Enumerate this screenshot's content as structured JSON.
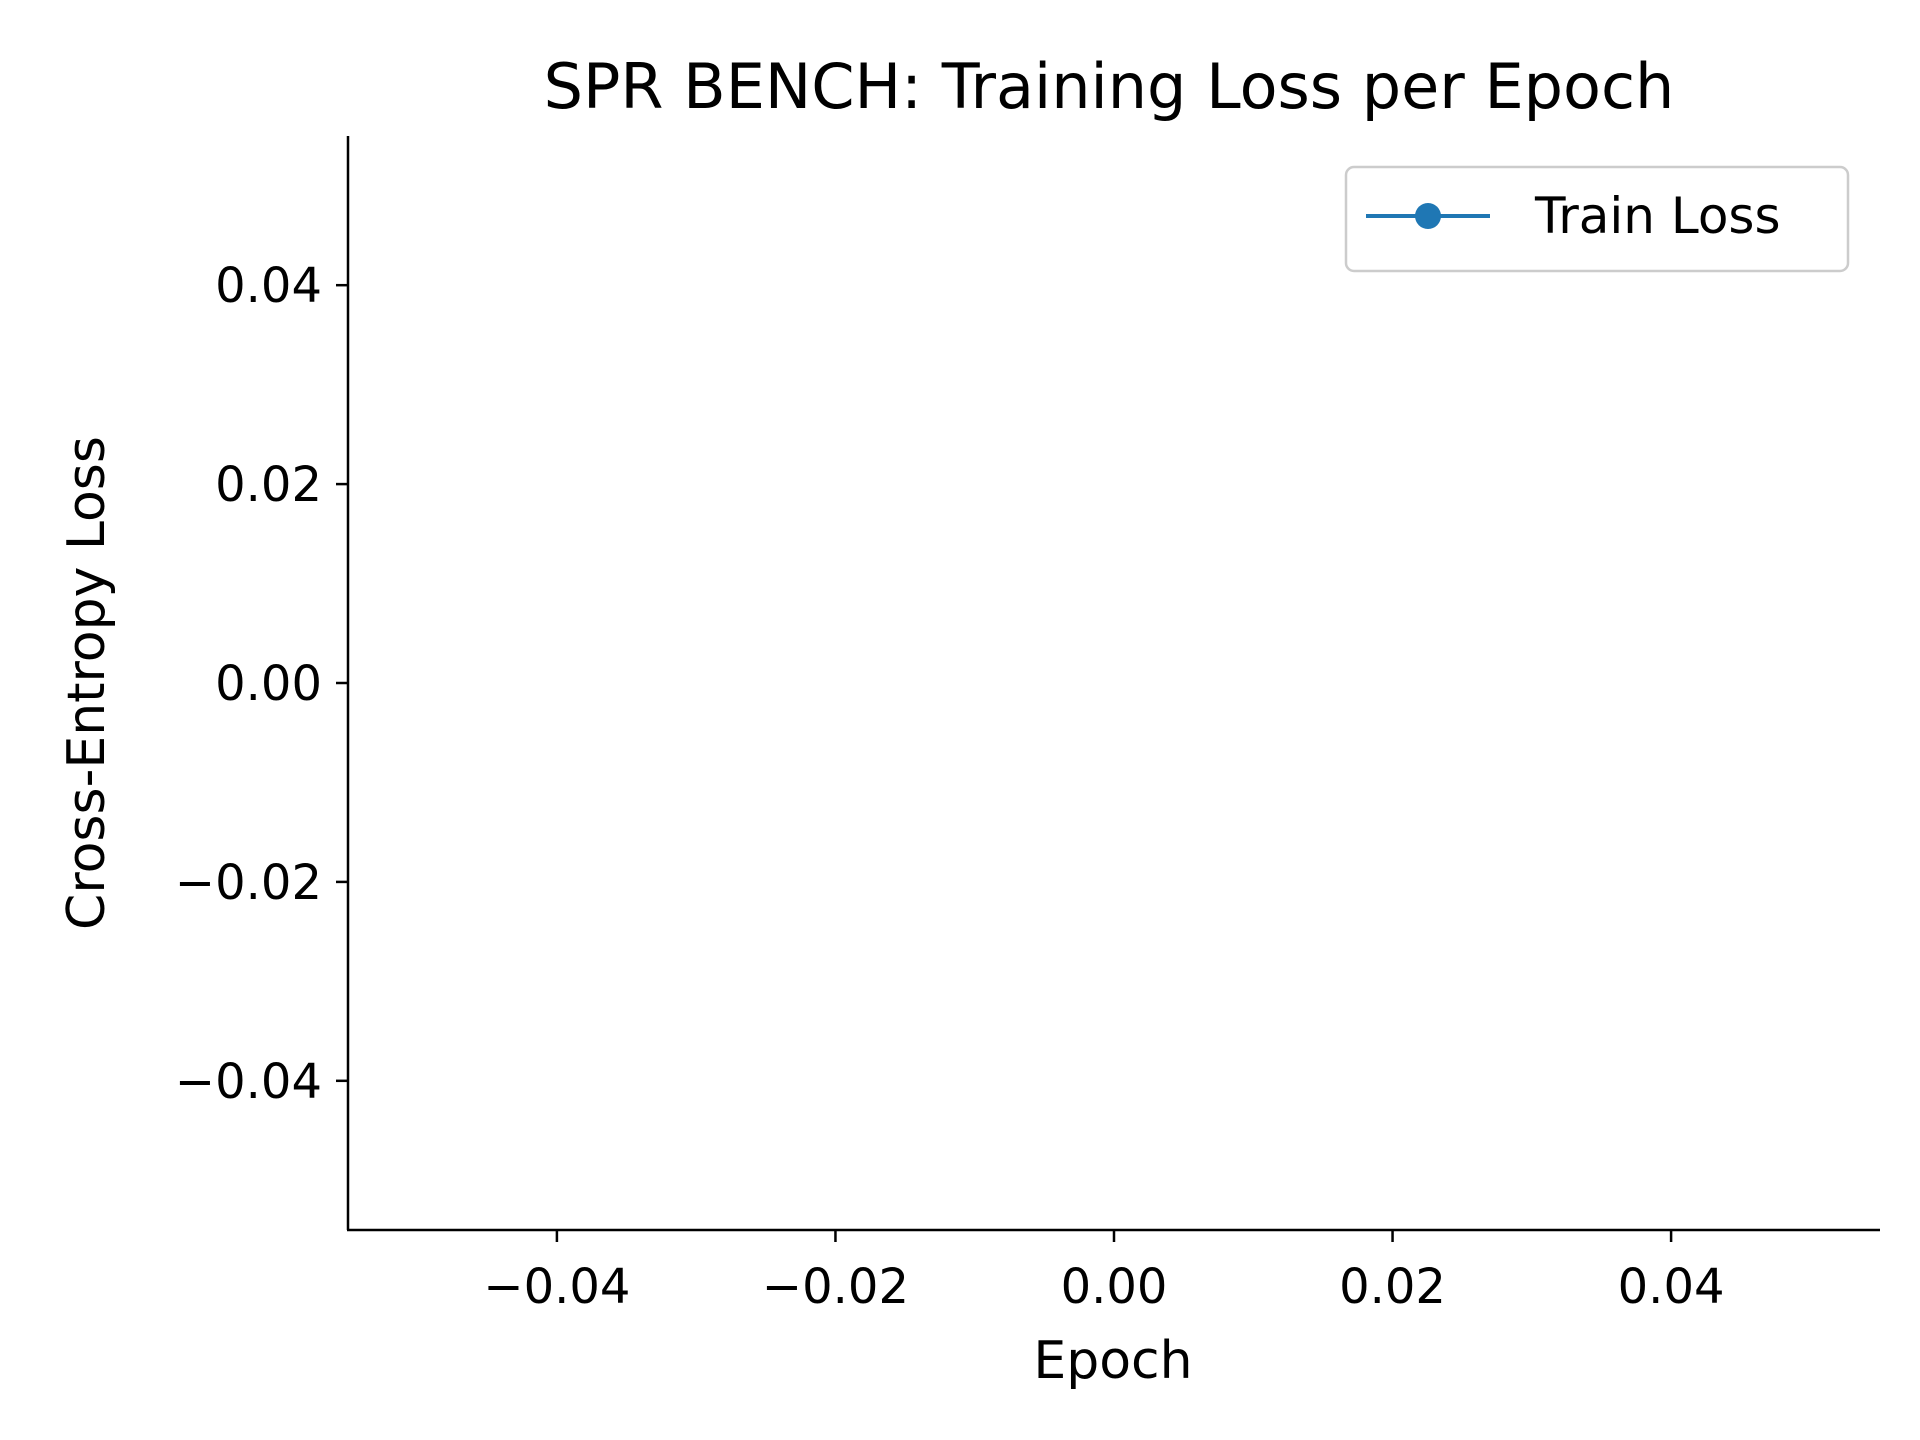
{
  "chart_data": {
    "type": "line",
    "title": "SPR BENCH: Training Loss per Epoch",
    "xlabel": "Epoch",
    "ylabel": "Cross-Entropy Loss",
    "xlim": [
      -0.055,
      0.055
    ],
    "ylim": [
      -0.055,
      0.055
    ],
    "xticks": [
      -0.04,
      -0.02,
      0.0,
      0.02,
      0.04
    ],
    "xtick_labels": [
      "−0.04",
      "−0.02",
      "0.00",
      "0.02",
      "0.04"
    ],
    "yticks": [
      -0.04,
      -0.02,
      0.0,
      0.02,
      0.04
    ],
    "ytick_labels": [
      "−0.04",
      "−0.02",
      "0.00",
      "0.02",
      "0.04"
    ],
    "grid": false,
    "legend_position": "top-right",
    "series": [
      {
        "name": "Train Loss",
        "color": "#1f77b4",
        "marker": "circle",
        "x": [],
        "y": []
      }
    ]
  }
}
